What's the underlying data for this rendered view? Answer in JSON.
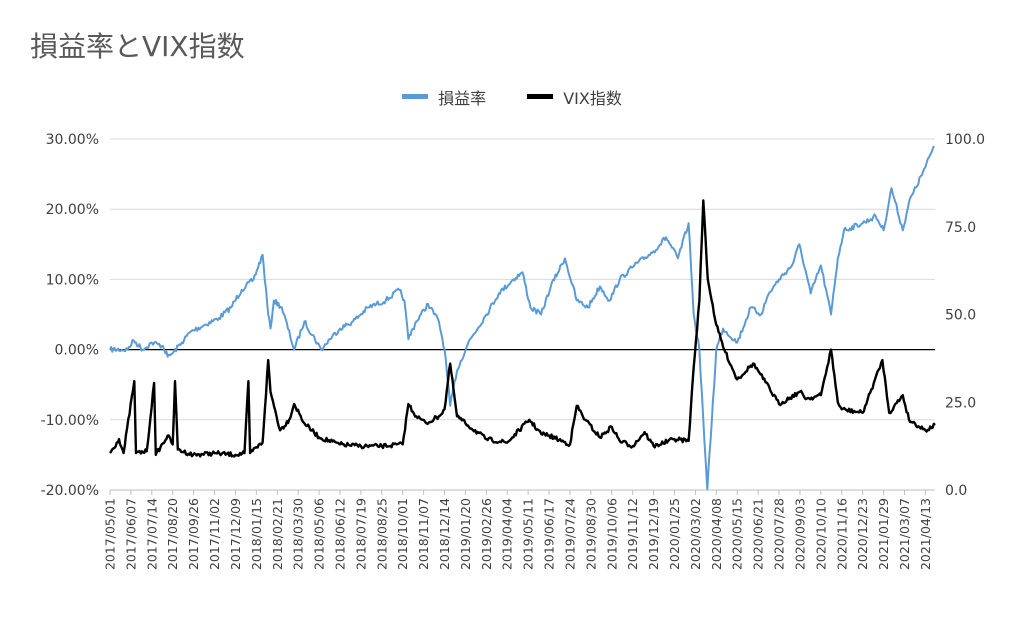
{
  "chart_data": {
    "type": "line",
    "title": "損益率とVIX指数",
    "legend": [
      {
        "name": "損益率",
        "color": "#5b9bd5"
      },
      {
        "name": "VIX指数",
        "color": "#000000"
      }
    ],
    "legend_position": "top",
    "grid": true,
    "y_left": {
      "min": -0.2,
      "max": 0.3,
      "ticks": [
        "30.00%",
        "20.00%",
        "10.00%",
        "0.00%",
        "-10.00%",
        "-20.00%"
      ]
    },
    "y_right": {
      "min": 0,
      "max": 100,
      "ticks": [
        "100.0",
        "75.0",
        "50.0",
        "25.0",
        "0.0"
      ]
    },
    "x_ticks": [
      "2017/05/01",
      "2017/06/07",
      "2017/07/14",
      "2017/08/20",
      "2017/09/26",
      "2017/11/02",
      "2017/12/09",
      "2018/01/15",
      "2018/02/21",
      "2018/03/30",
      "2018/05/06",
      "2018/06/12",
      "2018/07/19",
      "2018/08/25",
      "2018/10/01",
      "2018/11/07",
      "2018/12/14",
      "2019/01/20",
      "2019/02/26",
      "2019/04/04",
      "2019/05/11",
      "2019/06/17",
      "2019/07/24",
      "2019/08/30",
      "2019/10/06",
      "2019/11/12",
      "2019/12/19",
      "2020/01/25",
      "2020/03/02",
      "2020/04/08",
      "2020/05/15",
      "2020/06/21",
      "2020/07/28",
      "2020/09/03",
      "2020/10/10",
      "2020/11/16",
      "2020/12/23",
      "2021/01/29",
      "2021/03/07",
      "2021/04/13"
    ],
    "x_range": [
      "2017/05/01",
      "2021/04/30"
    ],
    "series": [
      {
        "name": "損益率",
        "axis": "left",
        "color": "#5b9bd5",
        "points": [
          [
            "2017/05/01",
            0.0
          ],
          [
            "2017/06/01",
            0.0
          ],
          [
            "2017/06/12",
            0.013
          ],
          [
            "2017/06/28",
            0.0
          ],
          [
            "2017/07/14",
            0.01
          ],
          [
            "2017/08/03",
            0.005
          ],
          [
            "2017/08/11",
            -0.01
          ],
          [
            "2017/08/20",
            -0.005
          ],
          [
            "2017/09/05",
            0.01
          ],
          [
            "2017/09/20",
            0.025
          ],
          [
            "2017/10/15",
            0.035
          ],
          [
            "2017/11/10",
            0.045
          ],
          [
            "2017/12/01",
            0.06
          ],
          [
            "2017/12/20",
            0.085
          ],
          [
            "2018/01/10",
            0.1
          ],
          [
            "2018/01/26",
            0.135
          ],
          [
            "2018/02/05",
            0.05
          ],
          [
            "2018/02/09",
            0.03
          ],
          [
            "2018/02/15",
            0.07
          ],
          [
            "2018/03/01",
            0.06
          ],
          [
            "2018/03/23",
            0.0
          ],
          [
            "2018/04/10",
            0.04
          ],
          [
            "2018/05/10",
            0.0
          ],
          [
            "2018/05/25",
            0.015
          ],
          [
            "2018/06/12",
            0.03
          ],
          [
            "2018/07/05",
            0.04
          ],
          [
            "2018/08/01",
            0.06
          ],
          [
            "2018/09/01",
            0.07
          ],
          [
            "2018/09/25",
            0.085
          ],
          [
            "2018/10/04",
            0.07
          ],
          [
            "2018/10/11",
            0.015
          ],
          [
            "2018/10/25",
            0.04
          ],
          [
            "2018/11/15",
            0.065
          ],
          [
            "2018/12/04",
            0.04
          ],
          [
            "2018/12/14",
            0.0
          ],
          [
            "2018/12/24",
            -0.08
          ],
          [
            "2019/01/05",
            -0.03
          ],
          [
            "2019/01/25",
            0.01
          ],
          [
            "2019/02/26",
            0.05
          ],
          [
            "2019/03/20",
            0.08
          ],
          [
            "2019/04/15",
            0.1
          ],
          [
            "2019/05/01",
            0.11
          ],
          [
            "2019/05/15",
            0.06
          ],
          [
            "2019/06/03",
            0.05
          ],
          [
            "2019/06/20",
            0.09
          ],
          [
            "2019/07/15",
            0.13
          ],
          [
            "2019/08/05",
            0.07
          ],
          [
            "2019/08/25",
            0.06
          ],
          [
            "2019/09/15",
            0.09
          ],
          [
            "2019/10/02",
            0.07
          ],
          [
            "2019/10/20",
            0.1
          ],
          [
            "2019/11/15",
            0.12
          ],
          [
            "2019/12/19",
            0.14
          ],
          [
            "2020/01/10",
            0.16
          ],
          [
            "2020/01/31",
            0.13
          ],
          [
            "2020/02/19",
            0.18
          ],
          [
            "2020/02/28",
            0.05
          ],
          [
            "2020/03/09",
            0.0
          ],
          [
            "2020/03/16",
            -0.1
          ],
          [
            "2020/03/23",
            -0.2
          ],
          [
            "2020/04/08",
            0.0
          ],
          [
            "2020/04/20",
            0.03
          ],
          [
            "2020/05/15",
            0.01
          ],
          [
            "2020/06/08",
            0.06
          ],
          [
            "2020/06/26",
            0.05
          ],
          [
            "2020/07/10",
            0.08
          ],
          [
            "2020/07/28",
            0.1
          ],
          [
            "2020/08/20",
            0.12
          ],
          [
            "2020/09/02",
            0.15
          ],
          [
            "2020/09/22",
            0.08
          ],
          [
            "2020/10/10",
            0.12
          ],
          [
            "2020/10/28",
            0.05
          ],
          [
            "2020/11/09",
            0.13
          ],
          [
            "2020/11/20",
            0.17
          ],
          [
            "2020/12/23",
            0.18
          ],
          [
            "2021/01/15",
            0.19
          ],
          [
            "2021/01/29",
            0.17
          ],
          [
            "2021/02/12",
            0.23
          ],
          [
            "2021/03/04",
            0.17
          ],
          [
            "2021/03/15",
            0.21
          ],
          [
            "2021/04/13",
            0.26
          ],
          [
            "2021/04/28",
            0.29
          ]
        ]
      },
      {
        "name": "VIX指数",
        "axis": "right",
        "color": "#000000",
        "points": [
          [
            "2017/05/01",
            10.5
          ],
          [
            "2017/05/17",
            14.5
          ],
          [
            "2017/05/25",
            10.5
          ],
          [
            "2017/06/13",
            31.0
          ],
          [
            "2017/06/16",
            10.5
          ],
          [
            "2017/07/05",
            11.0
          ],
          [
            "2017/07/18",
            30.5
          ],
          [
            "2017/07/21",
            10.0
          ],
          [
            "2017/08/11",
            15.5
          ],
          [
            "2017/08/20",
            13.0
          ],
          [
            "2017/08/24",
            31.0
          ],
          [
            "2017/08/29",
            11.5
          ],
          [
            "2017/09/25",
            10.0
          ],
          [
            "2017/11/02",
            10.5
          ],
          [
            "2017/12/09",
            10.0
          ],
          [
            "2017/12/25",
            10.5
          ],
          [
            "2018/01/01",
            31.0
          ],
          [
            "2018/01/04",
            10.5
          ],
          [
            "2018/01/26",
            13.5
          ],
          [
            "2018/02/05",
            37.0
          ],
          [
            "2018/02/09",
            28.0
          ],
          [
            "2018/02/26",
            17.0
          ],
          [
            "2018/03/14",
            20.0
          ],
          [
            "2018/03/23",
            24.5
          ],
          [
            "2018/04/10",
            19.0
          ],
          [
            "2018/05/06",
            15.0
          ],
          [
            "2018/06/12",
            13.0
          ],
          [
            "2018/07/19",
            12.5
          ],
          [
            "2018/08/25",
            12.5
          ],
          [
            "2018/10/01",
            13.0
          ],
          [
            "2018/10/11",
            24.5
          ],
          [
            "2018/10/25",
            21.0
          ],
          [
            "2018/11/12",
            19.0
          ],
          [
            "2018/12/04",
            21.0
          ],
          [
            "2018/12/14",
            23.0
          ],
          [
            "2018/12/24",
            36.0
          ],
          [
            "2019/01/05",
            21.0
          ],
          [
            "2019/01/20",
            19.0
          ],
          [
            "2019/02/26",
            14.5
          ],
          [
            "2019/04/04",
            13.5
          ],
          [
            "2019/05/13",
            20.0
          ],
          [
            "2019/06/03",
            16.0
          ],
          [
            "2019/06/17",
            15.5
          ],
          [
            "2019/07/24",
            13.0
          ],
          [
            "2019/08/05",
            24.0
          ],
          [
            "2019/08/20",
            20.0
          ],
          [
            "2019/09/15",
            15.0
          ],
          [
            "2019/10/06",
            18.0
          ],
          [
            "2019/10/20",
            14.0
          ],
          [
            "2019/11/12",
            12.5
          ],
          [
            "2019/12/03",
            16.5
          ],
          [
            "2019/12/19",
            12.5
          ],
          [
            "2020/01/25",
            14.5
          ],
          [
            "2020/02/19",
            14.0
          ],
          [
            "2020/02/28",
            35.0
          ],
          [
            "2020/03/09",
            54.0
          ],
          [
            "2020/03/16",
            82.5
          ],
          [
            "2020/03/24",
            60.0
          ],
          [
            "2020/04/08",
            47.0
          ],
          [
            "2020/04/22",
            40.0
          ],
          [
            "2020/05/15",
            31.5
          ],
          [
            "2020/06/12",
            36.0
          ],
          [
            "2020/06/21",
            34.0
          ],
          [
            "2020/07/28",
            24.5
          ],
          [
            "2020/09/03",
            28.0
          ],
          [
            "2020/09/15",
            26.0
          ],
          [
            "2020/10/10",
            27.0
          ],
          [
            "2020/10/28",
            40.0
          ],
          [
            "2020/11/09",
            25.0
          ],
          [
            "2020/11/16",
            23.0
          ],
          [
            "2020/12/23",
            22.0
          ],
          [
            "2021/01/27",
            37.0
          ],
          [
            "2021/02/08",
            22.0
          ],
          [
            "2021/03/04",
            27.0
          ],
          [
            "2021/03/15",
            20.0
          ],
          [
            "2021/04/13",
            17.0
          ],
          [
            "2021/04/30",
            18.5
          ]
        ]
      }
    ]
  }
}
